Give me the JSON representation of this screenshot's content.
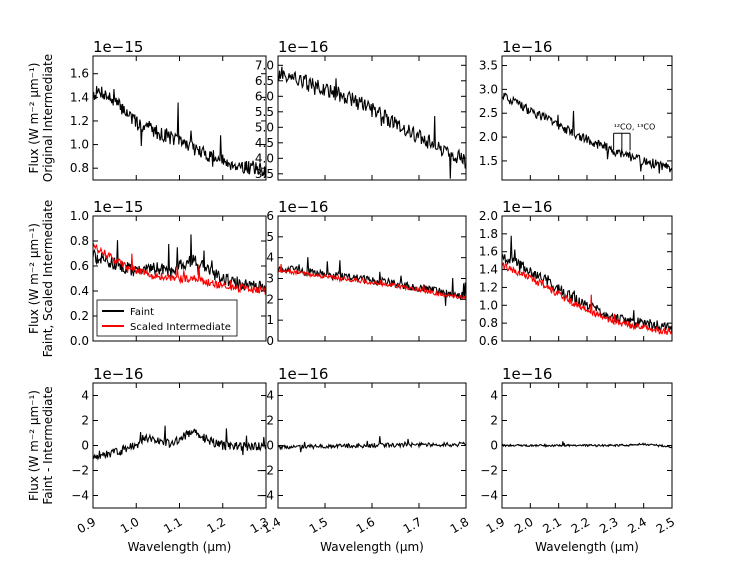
{
  "figure": {
    "xlabel": "Wavelength (μm)",
    "row_labels": [
      [
        "Flux (W m⁻² μm⁻¹)",
        "Original Intermediate"
      ],
      [
        "Flux (W m⁻² μm⁻¹)",
        "Faint, Scaled Intermediate"
      ],
      [
        "Flux (W m⁻² μm⁻¹)",
        "Faint - Intermediate"
      ]
    ],
    "columns": [
      {
        "xlim": [
          0.9,
          1.3
        ],
        "xticks": [
          "0.9",
          "1.0",
          "1.1",
          "1.2",
          "1.3"
        ],
        "xtick_values": [
          0.9,
          1.0,
          1.1,
          1.2,
          1.3
        ]
      },
      {
        "xlim": [
          1.4,
          1.8
        ],
        "xticks": [
          "1.4",
          "1.5",
          "1.6",
          "1.7",
          "1.8"
        ],
        "xtick_values": [
          1.4,
          1.5,
          1.6,
          1.7,
          1.8
        ]
      },
      {
        "xlim": [
          1.9,
          2.5
        ],
        "xticks": [
          "1.9",
          "2.0",
          "2.1",
          "2.2",
          "2.3",
          "2.4",
          "2.5"
        ],
        "xtick_values": [
          1.9,
          2.0,
          2.1,
          2.2,
          2.3,
          2.4,
          2.5
        ]
      }
    ]
  },
  "chart_data": [
    {
      "panel": "r1c1",
      "type": "line",
      "multiplier": "1e−15",
      "ylim": [
        0.7,
        1.75
      ],
      "yticks": [
        "0.8",
        "1.0",
        "1.2",
        "1.4",
        "1.6"
      ],
      "ytick_values": [
        0.8,
        1.0,
        1.2,
        1.4,
        1.6
      ],
      "series": [
        {
          "name": "Original Intermediate",
          "color": "#000000",
          "x": [
            0.9,
            0.92,
            0.95,
            0.98,
            1.0,
            1.03,
            1.05,
            1.08,
            1.1,
            1.13,
            1.15,
            1.18,
            1.2,
            1.23,
            1.25,
            1.28,
            1.3
          ],
          "y": [
            1.43,
            1.45,
            1.36,
            1.27,
            1.18,
            1.15,
            1.1,
            1.06,
            1.03,
            0.98,
            0.93,
            0.9,
            0.86,
            0.83,
            0.81,
            0.8,
            0.77
          ],
          "noise": 0.06
        }
      ]
    },
    {
      "panel": "r1c2",
      "type": "line",
      "multiplier": "1e−16",
      "ylim": [
        3.3,
        7.3
      ],
      "yticks": [
        "3.5",
        "4.0",
        "4.5",
        "5.0",
        "5.5",
        "6.0",
        "6.5",
        "7.0"
      ],
      "ytick_values": [
        3.5,
        4.0,
        4.5,
        5.0,
        5.5,
        6.0,
        6.5,
        7.0
      ],
      "series": [
        {
          "name": "Original Intermediate",
          "color": "#000000",
          "x": [
            1.4,
            1.43,
            1.45,
            1.48,
            1.5,
            1.53,
            1.55,
            1.58,
            1.6,
            1.63,
            1.65,
            1.68,
            1.7,
            1.73,
            1.75,
            1.78,
            1.8
          ],
          "y": [
            6.75,
            6.62,
            6.5,
            6.35,
            6.2,
            6.05,
            5.92,
            5.75,
            5.55,
            5.3,
            5.1,
            4.85,
            4.7,
            4.45,
            4.25,
            4.05,
            3.9
          ],
          "noise": 0.25
        }
      ]
    },
    {
      "panel": "r1c3",
      "type": "line",
      "multiplier": "1e−16",
      "ylim": [
        1.1,
        3.7
      ],
      "yticks": [
        "1.5",
        "2.0",
        "2.5",
        "3.0",
        "3.5"
      ],
      "ytick_values": [
        1.5,
        2.0,
        2.5,
        3.0,
        3.5
      ],
      "annotation": "¹²CO, ¹³CO",
      "annotation_x": [
        2.294,
        2.323,
        2.352
      ],
      "annotation_y": [
        1.72,
        2.08
      ],
      "series": [
        {
          "name": "Original Intermediate",
          "color": "#000000",
          "x": [
            1.9,
            1.95,
            2.0,
            2.05,
            2.1,
            2.15,
            2.2,
            2.25,
            2.3,
            2.35,
            2.4,
            2.45,
            2.5
          ],
          "y": [
            2.85,
            2.7,
            2.55,
            2.4,
            2.25,
            2.1,
            1.95,
            1.82,
            1.7,
            1.6,
            1.5,
            1.42,
            1.35
          ],
          "noise": 0.1
        }
      ]
    },
    {
      "panel": "r2c1",
      "type": "line",
      "multiplier": "1e−15",
      "ylim": [
        0.0,
        1.0
      ],
      "yticks": [
        "0.0",
        "0.2",
        "0.4",
        "0.6",
        "0.8",
        "1.0"
      ],
      "ytick_values": [
        0.0,
        0.2,
        0.4,
        0.6,
        0.8,
        1.0
      ],
      "legend": [
        "Faint",
        "Scaled Intermediate"
      ],
      "legend_loc": "lower-left",
      "series": [
        {
          "name": "Faint",
          "color": "#000000",
          "x": [
            0.9,
            0.95,
            1.0,
            1.05,
            1.08,
            1.1,
            1.13,
            1.15,
            1.2,
            1.25,
            1.3
          ],
          "y": [
            0.68,
            0.62,
            0.56,
            0.58,
            0.55,
            0.6,
            0.65,
            0.6,
            0.5,
            0.45,
            0.42
          ],
          "noise": 0.05
        },
        {
          "name": "Scaled Intermediate",
          "color": "#ff0000",
          "x": [
            0.9,
            0.95,
            1.0,
            1.05,
            1.1,
            1.15,
            1.2,
            1.25,
            1.3
          ],
          "y": [
            0.76,
            0.65,
            0.56,
            0.52,
            0.5,
            0.48,
            0.44,
            0.42,
            0.4
          ],
          "noise": 0.03
        }
      ]
    },
    {
      "panel": "r2c2",
      "type": "line",
      "multiplier": "1e−16",
      "ylim": [
        0,
        6
      ],
      "yticks": [
        "0",
        "1",
        "2",
        "3",
        "4",
        "5",
        "6"
      ],
      "ytick_values": [
        0,
        1,
        2,
        3,
        4,
        5,
        6
      ],
      "series": [
        {
          "name": "Faint",
          "color": "#000000",
          "x": [
            1.4,
            1.45,
            1.5,
            1.55,
            1.6,
            1.65,
            1.7,
            1.75,
            1.8
          ],
          "y": [
            3.5,
            3.35,
            3.2,
            3.05,
            2.9,
            2.75,
            2.55,
            2.35,
            2.15
          ],
          "noise": 0.2
        },
        {
          "name": "Scaled Intermediate",
          "color": "#ff0000",
          "x": [
            1.4,
            1.45,
            1.5,
            1.55,
            1.6,
            1.65,
            1.7,
            1.75,
            1.8
          ],
          "y": [
            3.4,
            3.25,
            3.1,
            2.95,
            2.8,
            2.65,
            2.45,
            2.25,
            2.05
          ],
          "noise": 0.1
        }
      ]
    },
    {
      "panel": "r2c3",
      "type": "line",
      "multiplier": "1e−16",
      "ylim": [
        0.6,
        2.0
      ],
      "yticks": [
        "0.6",
        "0.8",
        "1.0",
        "1.2",
        "1.4",
        "1.6",
        "1.8",
        "2.0"
      ],
      "ytick_values": [
        0.6,
        0.8,
        1.0,
        1.2,
        1.4,
        1.6,
        1.8,
        2.0
      ],
      "series": [
        {
          "name": "Faint",
          "color": "#000000",
          "x": [
            1.9,
            1.95,
            2.0,
            2.05,
            2.1,
            2.15,
            2.2,
            2.25,
            2.3,
            2.35,
            2.4,
            2.45,
            2.5
          ],
          "y": [
            1.55,
            1.48,
            1.38,
            1.28,
            1.18,
            1.08,
            1.0,
            0.92,
            0.86,
            0.82,
            0.8,
            0.78,
            0.76
          ],
          "noise": 0.06
        },
        {
          "name": "Scaled Intermediate",
          "color": "#ff0000",
          "x": [
            1.9,
            1.95,
            2.0,
            2.05,
            2.1,
            2.15,
            2.2,
            2.25,
            2.3,
            2.35,
            2.4,
            2.45,
            2.5
          ],
          "y": [
            1.45,
            1.38,
            1.3,
            1.22,
            1.12,
            1.03,
            0.95,
            0.88,
            0.82,
            0.78,
            0.75,
            0.72,
            0.7
          ],
          "noise": 0.04
        }
      ]
    },
    {
      "panel": "r3c1",
      "type": "line",
      "multiplier": "1e−16",
      "ylim": [
        -5,
        5
      ],
      "yticks": [
        "−4",
        "−2",
        "0",
        "2",
        "4"
      ],
      "ytick_values": [
        -4,
        -2,
        0,
        2,
        4
      ],
      "series": [
        {
          "name": "Faint - Intermediate",
          "color": "#000000",
          "x": [
            0.9,
            0.95,
            1.0,
            1.03,
            1.05,
            1.08,
            1.1,
            1.13,
            1.15,
            1.18,
            1.2,
            1.25,
            1.3
          ],
          "y": [
            -0.8,
            -0.6,
            0.0,
            0.7,
            0.4,
            0.1,
            0.5,
            1.1,
            0.7,
            0.2,
            0.0,
            -0.1,
            0.0
          ],
          "noise": 0.35
        }
      ]
    },
    {
      "panel": "r3c2",
      "type": "line",
      "multiplier": "1e−16",
      "ylim": [
        -5,
        5
      ],
      "yticks": [
        "−4",
        "−2",
        "0",
        "2",
        "4"
      ],
      "ytick_values": [
        -4,
        -2,
        0,
        2,
        4
      ],
      "series": [
        {
          "name": "Faint - Intermediate",
          "color": "#000000",
          "x": [
            1.4,
            1.5,
            1.6,
            1.7,
            1.8
          ],
          "y": [
            -0.1,
            -0.05,
            0.0,
            0.05,
            0.1
          ],
          "noise": 0.18
        }
      ]
    },
    {
      "panel": "r3c3",
      "type": "line",
      "multiplier": "1e−16",
      "ylim": [
        -5,
        5
      ],
      "yticks": [
        "−4",
        "−2",
        "0",
        "2",
        "4"
      ],
      "ytick_values": [
        -4,
        -2,
        0,
        2,
        4
      ],
      "series": [
        {
          "name": "Faint - Intermediate",
          "color": "#000000",
          "x": [
            1.9,
            2.0,
            2.1,
            2.2,
            2.3,
            2.4,
            2.5
          ],
          "y": [
            0.0,
            0.0,
            0.0,
            0.0,
            0.0,
            0.1,
            -0.1
          ],
          "noise": 0.08
        }
      ]
    }
  ]
}
